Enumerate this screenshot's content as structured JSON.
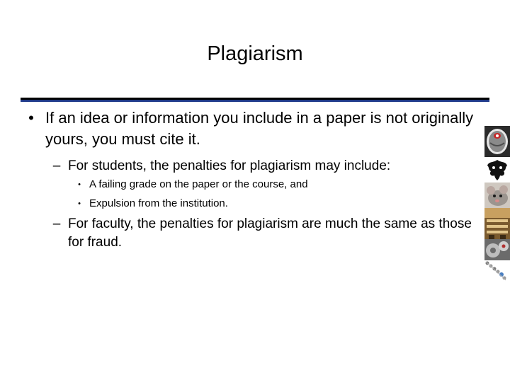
{
  "slide": {
    "title": "Plagiarism",
    "bullets": [
      {
        "marker": "•",
        "text": "If an idea or information you include in a paper is not originally yours, you must cite it."
      }
    ],
    "sub_bullets": [
      {
        "marker": "–",
        "text": "For students, the penalties for plagiarism may include:"
      },
      {
        "marker": "–",
        "text": "For faculty, the penalties for plagiarism are much the same as those for fraud."
      }
    ],
    "sub_sub_bullets": [
      {
        "marker": "•",
        "text": "A failing grade on the paper or the course, and"
      },
      {
        "marker": "•",
        "text": "Expulsion from the institution."
      }
    ]
  },
  "side_images": [
    {
      "icon": "brain-scan-icon"
    },
    {
      "icon": "inkblot-icon"
    },
    {
      "icon": "mouse-photo-icon"
    },
    {
      "icon": "library-photo-icon"
    },
    {
      "icon": "gears-photo-icon"
    },
    {
      "icon": "dna-helix-icon"
    }
  ],
  "colors": {
    "rule_dark": "#000000",
    "rule_accent": "#1f3a8a",
    "text": "#000000",
    "background": "#ffffff"
  }
}
